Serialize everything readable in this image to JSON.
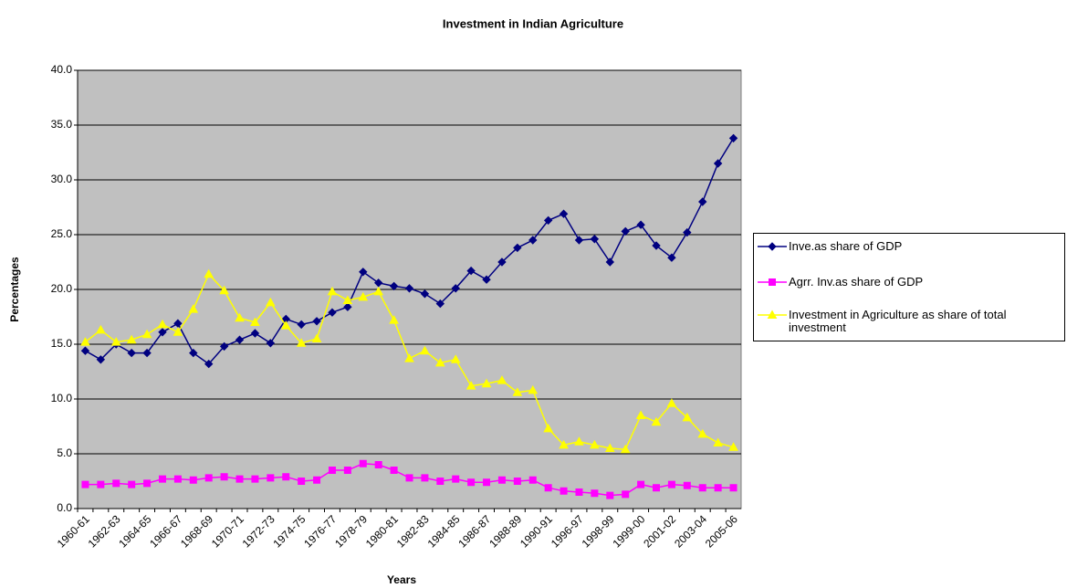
{
  "chart_data": {
    "type": "line",
    "title": "Investment in Indian Agriculture",
    "x_label": "Years",
    "y_label": "Percentages",
    "categories": [
      "1960-61",
      null,
      "1962-63",
      null,
      "1964-65",
      null,
      "1966-67",
      null,
      "1968-69",
      null,
      "1970-71",
      null,
      "1972-73",
      null,
      "1974-75",
      null,
      "1976-77",
      null,
      "1978-79",
      null,
      "1980-81",
      null,
      "1982-83",
      null,
      "1984-85",
      null,
      "1986-87",
      null,
      "1988-89",
      null,
      "1990-91",
      null,
      "1996-97",
      null,
      "1998-99",
      null,
      "1999-00",
      null,
      "2001-02",
      null,
      "2003-04",
      null,
      "2005-06"
    ],
    "series": [
      {
        "name": "Inve.as share of GDP",
        "color": "#000080",
        "marker": "diamond",
        "values": [
          14.4,
          13.6,
          15.0,
          14.2,
          14.2,
          16.1,
          16.9,
          14.2,
          13.2,
          14.8,
          15.4,
          16.0,
          15.1,
          17.3,
          16.8,
          17.1,
          17.9,
          18.4,
          21.6,
          20.6,
          20.3,
          20.1,
          19.6,
          18.7,
          20.1,
          21.7,
          20.9,
          22.5,
          23.8,
          24.5,
          26.3,
          26.9,
          24.5,
          24.6,
          22.5,
          25.3,
          25.9,
          24.0,
          22.9,
          25.2,
          28.0,
          31.5,
          33.8
        ]
      },
      {
        "name": "Agrr. Inv.as share of GDP",
        "color": "#ff00ff",
        "marker": "square",
        "values": [
          2.2,
          2.2,
          2.3,
          2.2,
          2.3,
          2.7,
          2.7,
          2.6,
          2.8,
          2.9,
          2.7,
          2.7,
          2.8,
          2.9,
          2.5,
          2.6,
          3.5,
          3.5,
          4.1,
          4.0,
          3.5,
          2.8,
          2.8,
          2.5,
          2.7,
          2.4,
          2.4,
          2.6,
          2.5,
          2.6,
          1.9,
          1.6,
          1.5,
          1.4,
          1.2,
          1.3,
          2.2,
          1.9,
          2.2,
          2.1,
          1.9,
          1.9,
          1.9
        ]
      },
      {
        "name": "Investment in Agriculture as share of total investment",
        "color": "#ffff00",
        "marker": "triangle",
        "values": [
          15.2,
          16.3,
          15.2,
          15.4,
          15.9,
          16.8,
          16.1,
          18.2,
          21.4,
          19.9,
          17.4,
          17.0,
          18.8,
          16.7,
          15.1,
          15.5,
          19.8,
          19.0,
          19.3,
          19.8,
          17.2,
          13.7,
          14.4,
          13.3,
          13.6,
          11.2,
          11.4,
          11.7,
          10.6,
          10.8,
          7.3,
          5.8,
          6.1,
          5.8,
          5.5,
          5.4,
          8.5,
          7.9,
          9.6,
          8.3,
          6.8,
          6.0,
          5.6
        ]
      }
    ],
    "ylim": [
      0,
      40
    ],
    "yticks": [
      {
        "value": 0,
        "label": "0.0"
      },
      {
        "value": 5,
        "label": "5.0"
      },
      {
        "value": 10,
        "label": "10.0"
      },
      {
        "value": 15,
        "label": "15.0"
      },
      {
        "value": 20,
        "label": "20.0"
      },
      {
        "value": 25,
        "label": "25.0"
      },
      {
        "value": 30,
        "label": "30.0"
      },
      {
        "value": 35,
        "label": "35.0"
      },
      {
        "value": 40,
        "label": "40.0"
      }
    ],
    "grid": true,
    "legend": "right",
    "plot_background": "#c0c0c0"
  }
}
